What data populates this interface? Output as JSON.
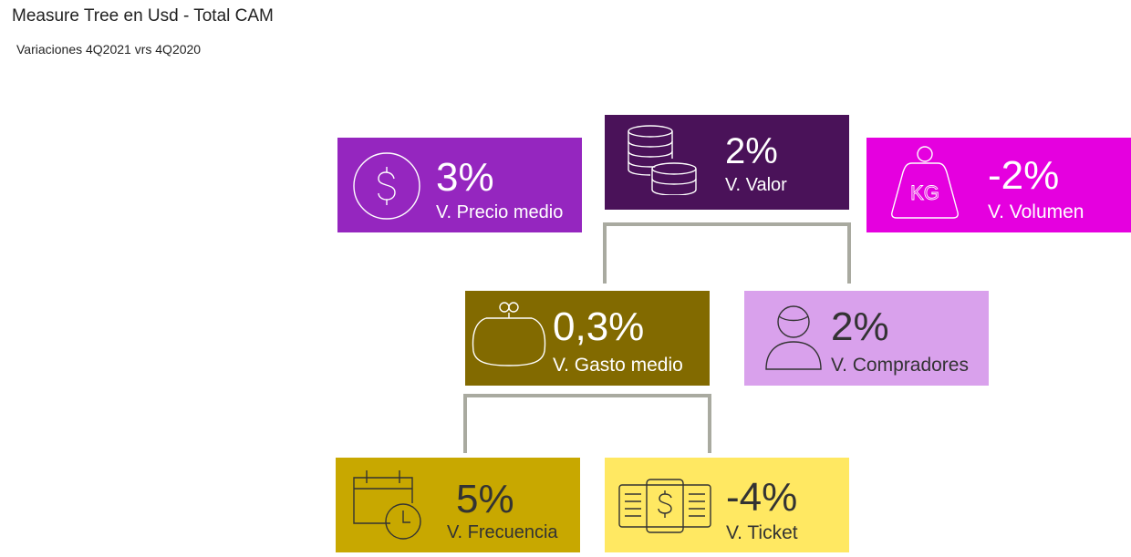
{
  "header": {
    "title": "Measure Tree en Usd - Total CAM",
    "subtitle": "Variaciones 4Q2021 vrs 4Q2020"
  },
  "nodes": {
    "precio_medio": {
      "value": "3%",
      "label": "V. Precio medio",
      "color": "#9526BF",
      "text_color": "#FFFFFF",
      "icon": "dollar-circle-icon"
    },
    "valor": {
      "value": "2%",
      "label": "V. Valor",
      "color": "#4A1259",
      "text_color": "#FFFFFF",
      "icon": "coin-stack-icon"
    },
    "volumen": {
      "value": "-2%",
      "label": "V. Volumen",
      "color": "#E500DF",
      "text_color": "#FFFFFF",
      "icon": "kg-weight-icon",
      "icon_text": "KG"
    },
    "gasto_medio": {
      "value": "0,3%",
      "label": "V. Gasto medio",
      "color": "#826A00",
      "text_color": "#FFFFFF",
      "icon": "purse-icon"
    },
    "compradores": {
      "value": "2%",
      "label": "V. Compradores",
      "color": "#D9A1EC",
      "text_color": "#333333",
      "icon": "person-icon"
    },
    "frecuencia": {
      "value": "5%",
      "label": "V. Frecuencia",
      "color": "#C8A800",
      "text_color": "#333333",
      "icon": "calendar-clock-icon"
    },
    "ticket": {
      "value": "-4%",
      "label": "V. Ticket",
      "color": "#FFE862",
      "text_color": "#333333",
      "icon": "banknote-icon"
    }
  },
  "colors": {
    "connector": "#A9AAA0"
  }
}
